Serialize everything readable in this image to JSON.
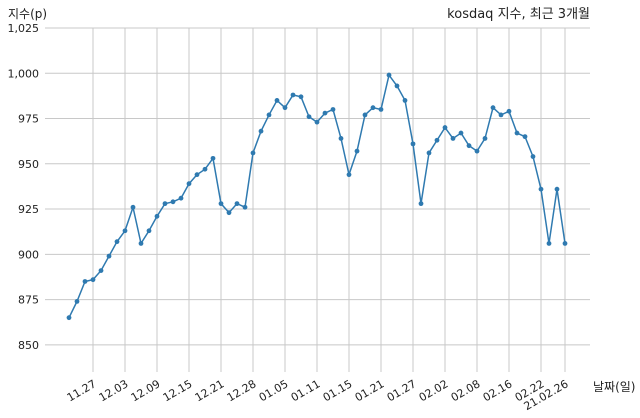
{
  "chart_data": {
    "type": "line",
    "title": "kosdaq 지수, 최근 3개월",
    "xlabel": "날짜(일)",
    "ylabel": "지수(p)",
    "ylim": [
      835,
      1025
    ],
    "grid": true,
    "yticks": [
      850,
      875,
      900,
      925,
      950,
      975,
      1000,
      1025
    ],
    "ytick_labels": [
      "850",
      "875",
      "900",
      "925",
      "950",
      "975",
      "1,000",
      "1,025"
    ],
    "xtick_labels": [
      "11.27",
      "12.03",
      "12.09",
      "12.15",
      "12.21",
      "12.28",
      "01.05",
      "01.11",
      "01.15",
      "01.21",
      "01.27",
      "02.02",
      "02.08",
      "02.16",
      "02.22",
      "21.02.26"
    ],
    "xtick_index": [
      3,
      7,
      11,
      15,
      19,
      23,
      27,
      31,
      35,
      39,
      43,
      47,
      51,
      55,
      59,
      62
    ],
    "series": [
      {
        "color": "#2f7ab0",
        "values": [
          865,
          874,
          885,
          886,
          891,
          899,
          907,
          913,
          926,
          906,
          913,
          921,
          928,
          929,
          931,
          939,
          944,
          947,
          953,
          928,
          923,
          928,
          926,
          956,
          968,
          977,
          985,
          981,
          988,
          987,
          976,
          973,
          978,
          980,
          964,
          944,
          957,
          977,
          981,
          980,
          999,
          993,
          985,
          961,
          928,
          956,
          963,
          970,
          964,
          967,
          960,
          957,
          964,
          981,
          977,
          979,
          967,
          965,
          954,
          936,
          906,
          936,
          906
        ]
      }
    ]
  }
}
